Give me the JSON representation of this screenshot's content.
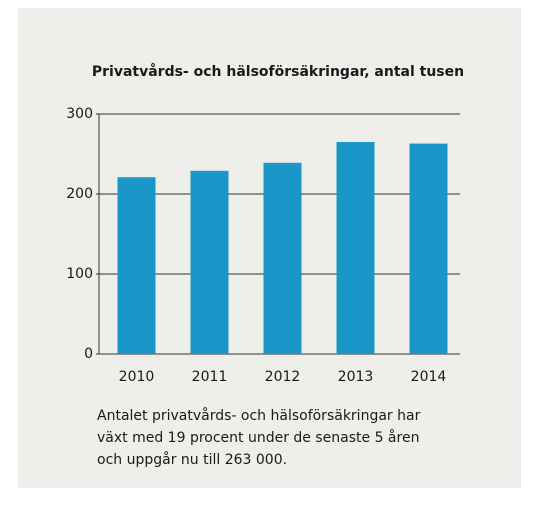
{
  "chart_data": {
    "type": "bar",
    "title": "Privatvårds- och hälsoförsäkringar, antal tusen",
    "categories": [
      "2010",
      "2011",
      "2012",
      "2013",
      "2014"
    ],
    "values": [
      221,
      229,
      239,
      265,
      263
    ],
    "color": "#1a96c8",
    "ylim": [
      0,
      300
    ],
    "yticks": [
      0,
      100,
      200,
      300
    ],
    "grid": true,
    "caption": [
      "Antalet privatvårds- och hälsoförsäkringar har",
      "växt med 19 procent under de senaste 5 åren",
      "och uppgår nu till 263 000."
    ]
  }
}
